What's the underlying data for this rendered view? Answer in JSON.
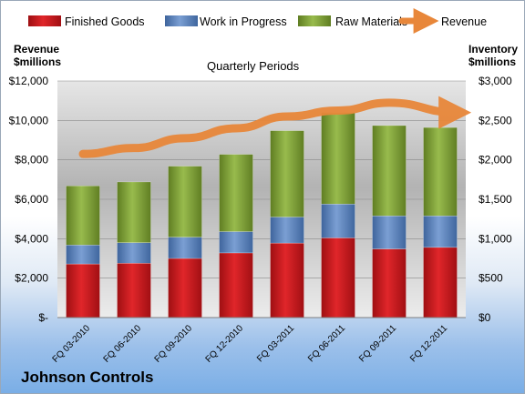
{
  "chart_data": {
    "type": "bar",
    "subtitle": "Quarterly Periods",
    "brand": "Johnson Controls",
    "left_axis": {
      "label_line1": "Revenue",
      "label_line2": "$millions",
      "ylim": [
        0,
        12000
      ],
      "ticks": [
        "$-",
        "$2,000",
        "$4,000",
        "$6,000",
        "$8,000",
        "$10,000",
        "$12,000"
      ]
    },
    "right_axis": {
      "label_line1": "Inventory",
      "label_line2": "$millions",
      "ylim": [
        0,
        3000
      ],
      "ticks": [
        "$0",
        "$500",
        "$1,000",
        "$1,500",
        "$2,000",
        "$2,500",
        "$3,000"
      ]
    },
    "categories": [
      "FQ 03-2010",
      "FQ 06-2010",
      "FQ 09-2010",
      "FQ 12-2010",
      "FQ 03-2011",
      "FQ 06-2011",
      "FQ 09-2011",
      "FQ 12-2011"
    ],
    "series": [
      {
        "name": "Finished Goods",
        "kind": "bar",
        "axis": "right",
        "color": "#c0161b",
        "values": [
          680,
          690,
          750,
          820,
          945,
          1010,
          870,
          890
        ]
      },
      {
        "name": "Work in Progress",
        "kind": "bar",
        "axis": "right",
        "color": "#4f79b8",
        "values": [
          240,
          260,
          270,
          270,
          330,
          430,
          420,
          400
        ]
      },
      {
        "name": "Raw Materials",
        "kind": "bar",
        "axis": "right",
        "color": "#7fa034",
        "values": [
          750,
          770,
          900,
          980,
          1095,
          1160,
          1145,
          1120
        ]
      },
      {
        "name": "Revenue",
        "kind": "line",
        "axis": "left",
        "color": "#e8873a",
        "values": [
          8300,
          8600,
          9100,
          9600,
          10200,
          10500,
          10900,
          10400
        ]
      }
    ],
    "legend_position": "top"
  }
}
